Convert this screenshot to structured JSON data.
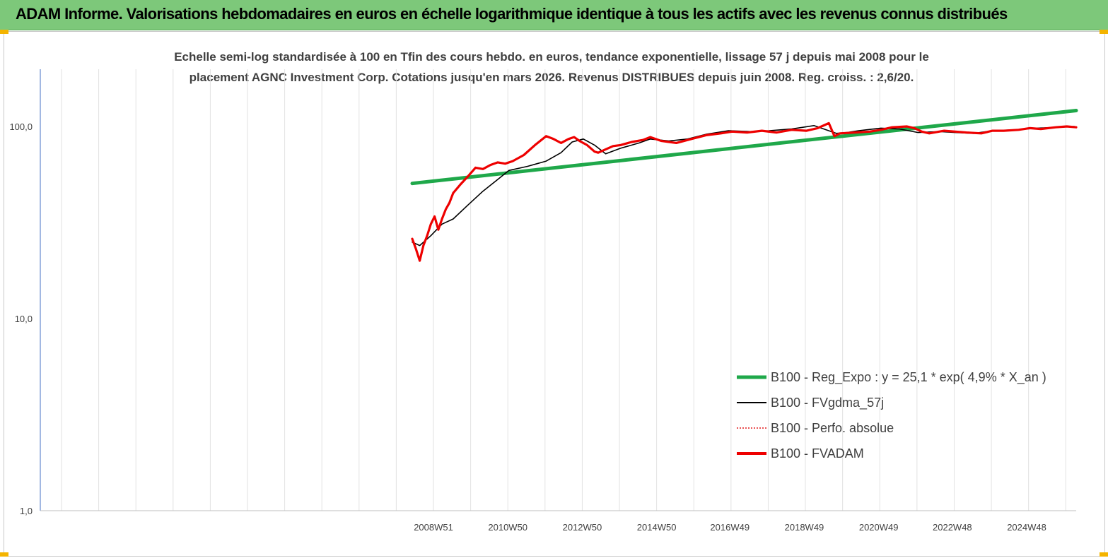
{
  "header": {
    "title": "ADAM Informe. Valorisations hebdomadaires en euros en échelle logarithmique identique à tous les actifs avec les revenus connus distribués",
    "background": "#7dc87a"
  },
  "chart_data": {
    "type": "line",
    "title": "Echelle semi-log standardisée à 100 en Tfin des cours hebdo. en euros, tendance exponentielle, lissage 57 j depuis mai 2008 pour le placement AGNC Investment Corp. Cotations jusqu'en mars 2026. Revenus DISTRIBUES depuis juin 2008. Reg. croiss. : 2,6/20.",
    "title_lines": [
      "Echelle semi-log standardisée à 100 en Tfin des cours hebdo. en euros, tendance exponentielle, lissage 57 j depuis mai 2008 pour le",
      "placement AGNC Investment Corp. Cotations jusqu'en mars 2026. Revenus DISTRIBUES depuis juin 2008. Reg. croiss. : 2,6/20."
    ],
    "y_scale": "log",
    "ylim": [
      1,
      200
    ],
    "y_ticks": [
      {
        "value": 1,
        "label": "1,0"
      },
      {
        "value": 10,
        "label": "10,0"
      },
      {
        "value": 100,
        "label": "100,0"
      }
    ],
    "xlim": [
      1998.4,
      2026.25
    ],
    "x_ticks": [
      {
        "year": 2008.97,
        "label": "2008W51"
      },
      {
        "year": 2010.97,
        "label": "2010W50"
      },
      {
        "year": 2012.97,
        "label": "2012W50"
      },
      {
        "year": 2014.97,
        "label": "2014W50"
      },
      {
        "year": 2016.94,
        "label": "2016W49"
      },
      {
        "year": 2018.94,
        "label": "2018W49"
      },
      {
        "year": 2020.94,
        "label": "2020W49"
      },
      {
        "year": 2022.92,
        "label": "2022W48"
      },
      {
        "year": 2024.92,
        "label": "2024W48"
      }
    ],
    "grid": "vertical",
    "legend_position": "bottom-right",
    "series": [
      {
        "name": "B100 - Reg_Expo : y = 25,1 * exp( 4,9% *  X_an )",
        "style": "thick",
        "color": "#1fa84a",
        "x": [
          2008.4,
          2026.25
        ],
        "values": [
          50.5,
          121
        ]
      },
      {
        "name": "B100 - FVgdma_57j",
        "style": "thin",
        "color": "#000000",
        "x": [
          2008.4,
          2008.6,
          2008.9,
          2009.2,
          2009.5,
          2009.9,
          2010.3,
          2010.7,
          2011.0,
          2011.5,
          2012.0,
          2012.4,
          2012.7,
          2013.0,
          2013.3,
          2013.6,
          2014.0,
          2014.5,
          2014.8,
          2015.3,
          2015.8,
          2016.3,
          2016.9,
          2017.5,
          2018.0,
          2018.6,
          2019.2,
          2019.8,
          2020.1,
          2020.4,
          2021.0,
          2021.5,
          2022.0,
          2022.6,
          2023.0,
          2023.5,
          2024.0,
          2024.6,
          2025.2,
          2025.8,
          2026.2
        ],
        "values": [
          25,
          24,
          27,
          31,
          33,
          39,
          46,
          53,
          59,
          62,
          66,
          73,
          83,
          86,
          80,
          72,
          77,
          82,
          86,
          84,
          86,
          91,
          95,
          94,
          95,
          97,
          101,
          92,
          93,
          95,
          98,
          97,
          93,
          94,
          93,
          92,
          95,
          96,
          98,
          99,
          100
        ]
      },
      {
        "name": "B100 - Perfo. absolue",
        "style": "dotted",
        "color": "#e41a1c",
        "x": [],
        "values": []
      },
      {
        "name": "B100 - FVADAM",
        "style": "thick",
        "color": "#ee0000",
        "x": [
          2008.4,
          2008.5,
          2008.6,
          2008.7,
          2008.8,
          2008.9,
          2009.0,
          2009.1,
          2009.2,
          2009.3,
          2009.4,
          2009.5,
          2009.7,
          2009.9,
          2010.1,
          2010.3,
          2010.5,
          2010.7,
          2010.9,
          2011.1,
          2011.4,
          2011.7,
          2012.0,
          2012.2,
          2012.4,
          2012.6,
          2012.75,
          2012.9,
          2013.1,
          2013.3,
          2013.4,
          2013.6,
          2013.8,
          2014.0,
          2014.3,
          2014.6,
          2014.8,
          2015.1,
          2015.5,
          2015.9,
          2016.3,
          2016.7,
          2017.0,
          2017.4,
          2017.8,
          2018.2,
          2018.6,
          2019.0,
          2019.3,
          2019.6,
          2019.75,
          2019.9,
          2020.3,
          2020.7,
          2021.0,
          2021.3,
          2021.7,
          2021.9,
          2022.1,
          2022.3,
          2022.7,
          2023.0,
          2023.3,
          2023.7,
          2024.0,
          2024.3,
          2024.7,
          2025.0,
          2025.3,
          2025.7,
          2026.0,
          2026.25
        ],
        "values": [
          26,
          23,
          20,
          24,
          27,
          31,
          34,
          29,
          33,
          37,
          40,
          45,
          50,
          55,
          61,
          60,
          63,
          65,
          64,
          66,
          71,
          80,
          89,
          86,
          82,
          86,
          88,
          84,
          80,
          74,
          73,
          76,
          79,
          80,
          83,
          85,
          88,
          84,
          82,
          86,
          90,
          92,
          94,
          93,
          95,
          93,
          96,
          95,
          98,
          104,
          89,
          92,
          93,
          94,
          96,
          99,
          100,
          98,
          94,
          92,
          95,
          94,
          93,
          92,
          95,
          95,
          96,
          98,
          97,
          99,
          100,
          99
        ]
      }
    ]
  }
}
